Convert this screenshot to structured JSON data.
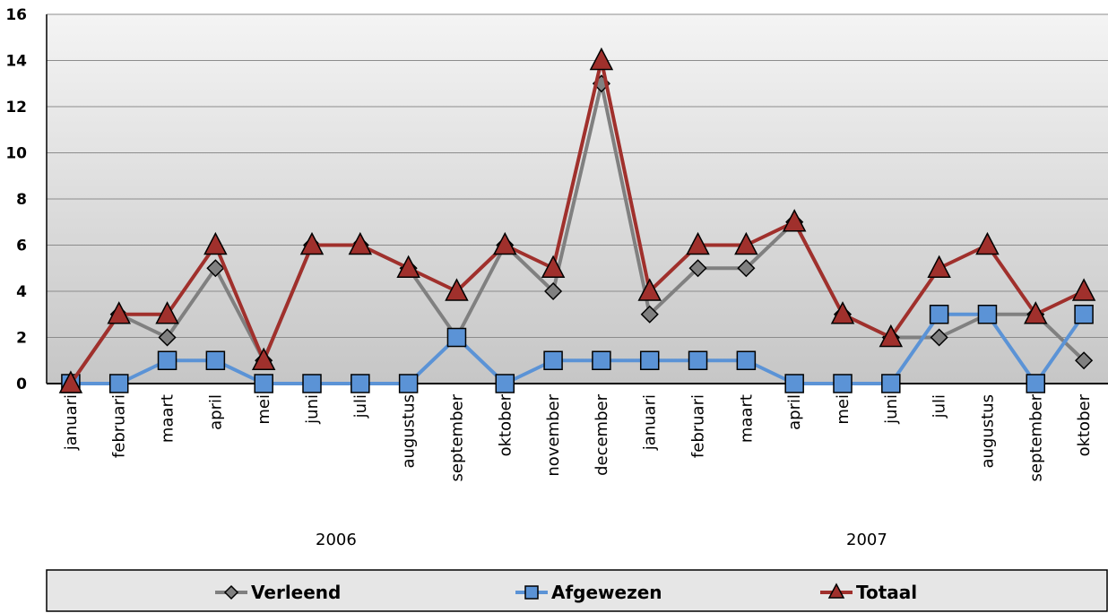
{
  "chart_data": {
    "type": "line",
    "title": "",
    "xlabel": "",
    "ylabel": "",
    "ylim": [
      0,
      16
    ],
    "y_ticks": [
      "0",
      "2",
      "4",
      "6",
      "8",
      "10",
      "12",
      "14",
      "16"
    ],
    "grid": "horizontal",
    "legend_position": "bottom",
    "categories": [
      "januari",
      "februari",
      "maart",
      "april",
      "mei",
      "juni",
      "juli",
      "augustus",
      "september",
      "oktober",
      "november",
      "december",
      "januari",
      "februari",
      "maart",
      "april",
      "mei",
      "juni",
      "juli",
      "augustus",
      "september",
      "oktober"
    ],
    "groups": [
      {
        "label": "2006",
        "start": 0,
        "end": 11
      },
      {
        "label": "2007",
        "start": 12,
        "end": 21
      }
    ],
    "series": [
      {
        "name": "Verleend",
        "color": "#808080",
        "marker": "diamond",
        "values": [
          0,
          3,
          2,
          5,
          1,
          6,
          6,
          5,
          2,
          6,
          4,
          13,
          3,
          5,
          5,
          7,
          3,
          2,
          2,
          3,
          3,
          1
        ]
      },
      {
        "name": "Afgewezen",
        "color": "#5b93d6",
        "marker": "square",
        "values": [
          0,
          0,
          1,
          1,
          0,
          0,
          0,
          0,
          2,
          0,
          1,
          1,
          1,
          1,
          1,
          0,
          0,
          0,
          3,
          3,
          0,
          3
        ]
      },
      {
        "name": "Totaal",
        "color": "#a0302c",
        "marker": "triangle",
        "values": [
          0,
          3,
          3,
          6,
          1,
          6,
          6,
          5,
          4,
          6,
          5,
          14,
          4,
          6,
          6,
          7,
          3,
          2,
          5,
          6,
          3,
          4
        ]
      }
    ]
  }
}
